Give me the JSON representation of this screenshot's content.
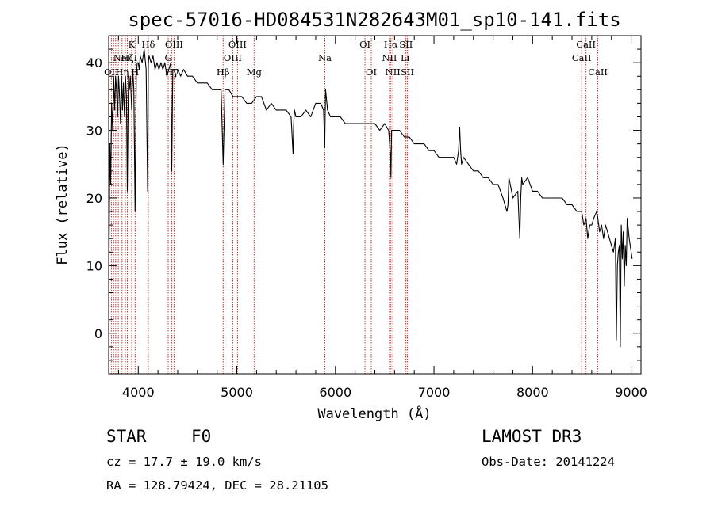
{
  "chart_data": {
    "type": "line",
    "title": "spec-57016-HD084531N282643M01_sp10-141.fits",
    "xlabel": "Wavelength (Å)",
    "ylabel": "Flux (relative)",
    "xlim": [
      3700,
      9100
    ],
    "ylim": [
      -6,
      44
    ],
    "xticks": [
      4000,
      5000,
      6000,
      7000,
      8000,
      9000
    ],
    "yticks": [
      0,
      10,
      20,
      30,
      40
    ],
    "series": [
      {
        "name": "flux",
        "x": [
          3700,
          3705,
          3712,
          3720,
          3730,
          3740,
          3750,
          3760,
          3770,
          3780,
          3790,
          3800,
          3810,
          3820,
          3830,
          3840,
          3850,
          3860,
          3870,
          3880,
          3889,
          3900,
          3910,
          3920,
          3933,
          3945,
          3955,
          3968,
          3980,
          3990,
          4000,
          4010,
          4020,
          4040,
          4060,
          4080,
          4095,
          4102,
          4110,
          4130,
          4150,
          4170,
          4190,
          4210,
          4230,
          4250,
          4270,
          4290,
          4310,
          4330,
          4340,
          4350,
          4370,
          4400,
          4430,
          4460,
          4500,
          4550,
          4600,
          4650,
          4700,
          4750,
          4800,
          4840,
          4861,
          4880,
          4920,
          4960,
          5000,
          5050,
          5100,
          5150,
          5200,
          5250,
          5300,
          5350,
          5400,
          5450,
          5500,
          5550,
          5570,
          5577,
          5585,
          5600,
          5650,
          5700,
          5750,
          5800,
          5850,
          5880,
          5891,
          5900,
          5920,
          5950,
          6000,
          6050,
          6100,
          6150,
          6200,
          6250,
          6300,
          6350,
          6400,
          6450,
          6500,
          6540,
          6560,
          6563,
          6570,
          6600,
          6650,
          6700,
          6750,
          6800,
          6850,
          6900,
          6950,
          7000,
          7050,
          7100,
          7150,
          7200,
          7230,
          7250,
          7260,
          7270,
          7280,
          7300,
          7350,
          7400,
          7450,
          7500,
          7550,
          7600,
          7650,
          7700,
          7740,
          7750,
          7760,
          7800,
          7850,
          7870,
          7880,
          7890,
          7900,
          7950,
          8000,
          8050,
          8100,
          8150,
          8200,
          8250,
          8300,
          8350,
          8400,
          8450,
          8498,
          8520,
          8542,
          8560,
          8580,
          8600,
          8620,
          8650,
          8662,
          8680,
          8700,
          8720,
          8740,
          8760,
          8780,
          8800,
          8820,
          8840,
          8850,
          8860,
          8870,
          8880,
          8890,
          8900,
          8910,
          8920,
          8930,
          8940,
          8950,
          8960,
          8980,
          9000,
          9010
        ],
        "values": [
          0.5,
          14,
          28,
          22,
          34,
          30,
          38,
          33,
          38,
          36,
          32,
          38,
          35,
          31,
          38,
          33,
          37,
          32,
          38,
          35,
          21,
          38,
          36,
          38,
          33,
          39,
          36,
          18,
          38,
          40,
          40,
          39,
          41,
          40,
          42,
          39,
          21,
          40,
          41,
          40,
          41,
          39,
          40,
          39,
          40,
          39,
          40,
          38,
          39,
          40,
          24,
          39,
          39,
          39,
          38,
          39,
          38,
          38,
          37,
          37,
          37,
          36,
          36,
          36,
          25,
          36,
          36,
          35,
          35,
          35,
          34,
          34,
          35,
          35,
          33,
          34,
          33,
          33,
          33,
          32,
          26.5,
          31,
          33,
          32,
          32,
          33,
          32,
          34,
          34,
          33,
          27.5,
          36,
          33,
          32,
          32,
          32,
          31,
          31,
          31,
          31,
          31,
          31,
          31,
          30,
          31,
          30,
          26,
          23,
          30,
          30,
          30,
          29,
          29,
          28,
          28,
          28,
          27,
          27,
          26,
          26,
          26,
          26,
          25,
          27,
          30.5,
          27,
          25,
          26,
          25,
          24,
          24,
          23,
          23,
          22,
          22,
          20,
          18,
          19,
          23,
          20,
          21,
          14,
          20,
          23,
          22,
          23,
          21,
          21,
          20,
          20,
          20,
          20,
          20,
          19,
          19,
          18,
          18,
          16,
          17,
          14,
          16,
          16,
          17,
          18,
          17,
          15,
          16,
          14,
          16,
          15,
          14,
          13,
          12,
          14,
          -1,
          10,
          12,
          13,
          -2,
          16,
          11,
          15,
          7,
          13,
          10,
          17,
          14,
          12,
          11
        ],
        "color": "#000000"
      }
    ],
    "lines": [
      {
        "wl": 3727,
        "label": "OII",
        "row": 2,
        "anchor": "middle"
      },
      {
        "wl": 3750,
        "label": "",
        "row": 0,
        "anchor": "middle"
      },
      {
        "wl": 3771,
        "label": "",
        "row": 0,
        "anchor": "middle"
      },
      {
        "wl": 3798,
        "label": "",
        "row": 0,
        "anchor": "middle"
      },
      {
        "wl": 3835,
        "label": "Hη",
        "row": 2,
        "anchor": "middle"
      },
      {
        "wl": 3869,
        "label": "NeIII",
        "row": 1,
        "anchor": "middle"
      },
      {
        "wl": 3889,
        "label": "Hζ",
        "row": 1,
        "anchor": "middle"
      },
      {
        "wl": 3933,
        "label": "K",
        "row": 0,
        "anchor": "middle"
      },
      {
        "wl": 3968,
        "label": "H",
        "row": 2,
        "anchor": "middle"
      },
      {
        "wl": 4102,
        "label": "Hδ",
        "row": 0,
        "anchor": "middle"
      },
      {
        "wl": 4304,
        "label": "G",
        "row": 1,
        "anchor": "middle"
      },
      {
        "wl": 4340,
        "label": "Hγ",
        "row": 2,
        "anchor": "middle"
      },
      {
        "wl": 4363,
        "label": "OIII",
        "row": 0,
        "anchor": "middle"
      },
      {
        "wl": 4861,
        "label": "Hβ",
        "row": 2,
        "anchor": "middle"
      },
      {
        "wl": 4959,
        "label": "OIII",
        "row": 1,
        "anchor": "middle"
      },
      {
        "wl": 5007,
        "label": "OIII",
        "row": 0,
        "anchor": "middle"
      },
      {
        "wl": 5175,
        "label": "Mg",
        "row": 2,
        "anchor": "middle"
      },
      {
        "wl": 5893,
        "label": "Na",
        "row": 1,
        "anchor": "middle"
      },
      {
        "wl": 6300,
        "label": "OI",
        "row": 0,
        "anchor": "middle"
      },
      {
        "wl": 6364,
        "label": "OI",
        "row": 2,
        "anchor": "middle"
      },
      {
        "wl": 6548,
        "label": "NII",
        "row": 1,
        "anchor": "middle"
      },
      {
        "wl": 6563,
        "label": "Hα",
        "row": 0,
        "anchor": "middle"
      },
      {
        "wl": 6583,
        "label": "NII",
        "row": 2,
        "anchor": "middle"
      },
      {
        "wl": 6707,
        "label": "Li",
        "row": 1,
        "anchor": "middle"
      },
      {
        "wl": 6716,
        "label": "SII",
        "row": 0,
        "anchor": "middle"
      },
      {
        "wl": 6731,
        "label": "SII",
        "row": 2,
        "anchor": "middle"
      },
      {
        "wl": 8498,
        "label": "CaII",
        "row": 1,
        "anchor": "middle"
      },
      {
        "wl": 8542,
        "label": "CaII",
        "row": 0,
        "anchor": "middle"
      },
      {
        "wl": 8662,
        "label": "CaII",
        "row": 2,
        "anchor": "middle"
      }
    ],
    "colors": {
      "spectrum": "#000000",
      "line_marker": "#c0392b"
    }
  },
  "info": {
    "obj_class": "STAR",
    "subclass": "F0",
    "survey": "LAMOST DR3",
    "cz": "cz = 17.7 ± 19.0 km/s",
    "obs_date": "Obs-Date: 20141224",
    "radec": "RA = 128.79424, DEC =  28.21105"
  }
}
